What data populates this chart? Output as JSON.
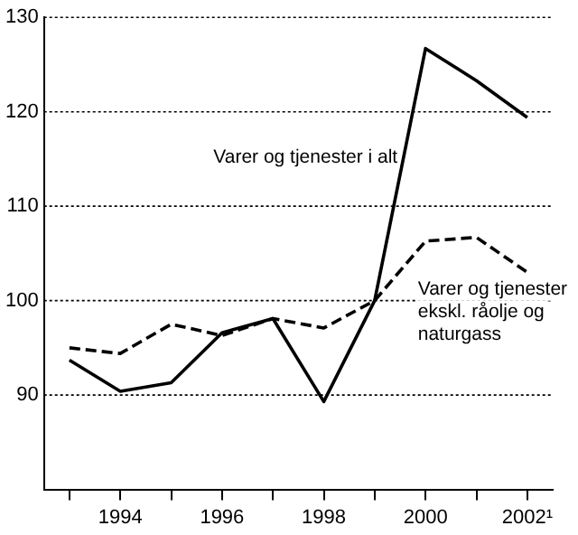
{
  "chart_data": {
    "type": "line",
    "categories": [
      null,
      "1994",
      null,
      "1996",
      null,
      "1998",
      null,
      "2000",
      null,
      "2002¹"
    ],
    "series": [
      {
        "name": "Varer og tjenester i alt",
        "color": "#000000",
        "line_style": "solid",
        "values": [
          93.7,
          90.4,
          91.3,
          96.6,
          98.1,
          89.3,
          100,
          126.7,
          123.3,
          119.4
        ]
      },
      {
        "name": "Varer og tjenester ekskl. råolje og naturgass",
        "color": "#000000",
        "line_style": "dashed",
        "values": [
          95,
          94.4,
          97.5,
          96.3,
          98.1,
          97.1,
          100,
          106.3,
          106.7,
          103
        ]
      }
    ],
    "ylim": [
      80,
      130
    ],
    "yticks": [
      90,
      100,
      110,
      120,
      130
    ],
    "grid": "y",
    "legend": false,
    "marker": "none"
  }
}
